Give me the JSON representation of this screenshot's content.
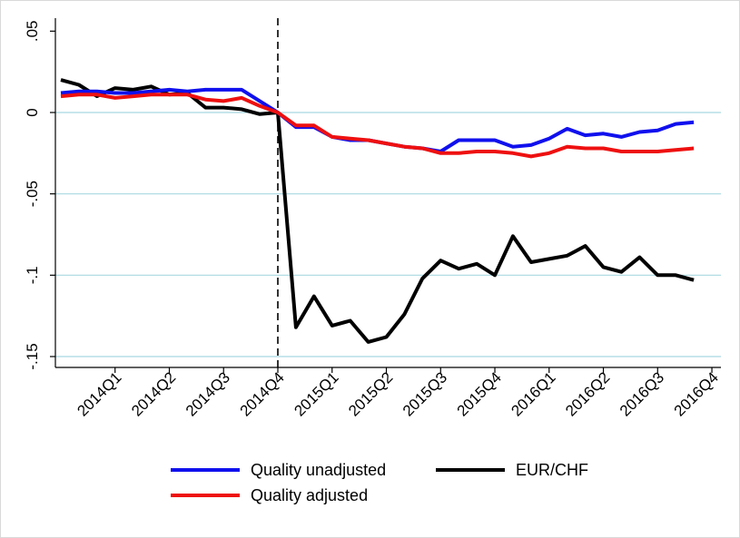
{
  "chart_data": {
    "type": "line",
    "title": "",
    "xlabel": "",
    "ylabel": "",
    "ylim": [
      -0.15,
      0.05
    ],
    "y_ticks": [
      0.05,
      0,
      -0.05,
      -0.1,
      -0.15
    ],
    "y_tick_labels": [
      ".05",
      "0",
      "-.05",
      "-.1",
      "-.15"
    ],
    "x_tick_labels": [
      "2014Q1",
      "2014Q2",
      "2014Q3",
      "2014Q4",
      "2015Q1",
      "2015Q2",
      "2015Q3",
      "2015Q4",
      "2016Q1",
      "2016Q2",
      "2016Q3",
      "2016Q4"
    ],
    "x_tick_positions": [
      3,
      6,
      9,
      12,
      15,
      18,
      21,
      24,
      27,
      30,
      33,
      36
    ],
    "x_range": [
      -0.3,
      36.5
    ],
    "event_line_x": 12,
    "grid": "horizontal",
    "legend_position": "bottom",
    "colors": {
      "grid": "#a8d8e0",
      "event_line": "#000000"
    },
    "series": [
      {
        "name": "Quality unadjusted",
        "color": "#1010ee",
        "x": [
          0,
          1,
          2,
          3,
          4,
          5,
          6,
          7,
          8,
          9,
          10,
          11,
          12,
          13,
          14,
          15,
          16,
          17,
          18,
          19,
          20,
          21,
          22,
          23,
          24,
          25,
          26,
          27,
          28,
          29,
          30,
          31,
          32,
          33,
          34,
          35
        ],
        "values": [
          0.012,
          0.013,
          0.013,
          0.012,
          0.012,
          0.013,
          0.014,
          0.013,
          0.014,
          0.014,
          0.014,
          0.007,
          0.0,
          -0.009,
          -0.009,
          -0.015,
          -0.017,
          -0.017,
          -0.019,
          -0.021,
          -0.022,
          -0.024,
          -0.017,
          -0.017,
          -0.017,
          -0.021,
          -0.02,
          -0.016,
          -0.01,
          -0.014,
          -0.013,
          -0.015,
          -0.012,
          -0.011,
          -0.007,
          -0.006
        ]
      },
      {
        "name": "Quality adjusted",
        "color": "#ee1010",
        "x": [
          0,
          1,
          2,
          3,
          4,
          5,
          6,
          7,
          8,
          9,
          10,
          11,
          12,
          13,
          14,
          15,
          16,
          17,
          18,
          19,
          20,
          21,
          22,
          23,
          24,
          25,
          26,
          27,
          28,
          29,
          30,
          31,
          32,
          33,
          34,
          35
        ],
        "values": [
          0.01,
          0.011,
          0.011,
          0.009,
          0.01,
          0.011,
          0.011,
          0.011,
          0.008,
          0.007,
          0.009,
          0.004,
          0.0,
          -0.008,
          -0.008,
          -0.015,
          -0.016,
          -0.017,
          -0.019,
          -0.021,
          -0.022,
          -0.025,
          -0.025,
          -0.024,
          -0.024,
          -0.025,
          -0.027,
          -0.025,
          -0.021,
          -0.022,
          -0.022,
          -0.024,
          -0.024,
          -0.024,
          -0.023,
          -0.022
        ]
      },
      {
        "name": "EUR/CHF",
        "color": "#000000",
        "x": [
          0,
          1,
          2,
          3,
          4,
          5,
          6,
          7,
          8,
          9,
          10,
          11,
          12,
          13,
          14,
          15,
          16,
          17,
          18,
          19,
          20,
          21,
          22,
          23,
          24,
          25,
          26,
          27,
          28,
          29,
          30,
          31,
          32,
          33,
          34,
          35
        ],
        "values": [
          0.02,
          0.017,
          0.01,
          0.015,
          0.014,
          0.016,
          0.011,
          0.012,
          0.003,
          0.003,
          0.002,
          -0.001,
          0.0,
          -0.132,
          -0.113,
          -0.131,
          -0.128,
          -0.141,
          -0.138,
          -0.124,
          -0.102,
          -0.091,
          -0.096,
          -0.093,
          -0.1,
          -0.076,
          -0.092,
          -0.09,
          -0.088,
          -0.082,
          -0.095,
          -0.098,
          -0.089,
          -0.1,
          -0.1,
          -0.103
        ]
      }
    ]
  }
}
